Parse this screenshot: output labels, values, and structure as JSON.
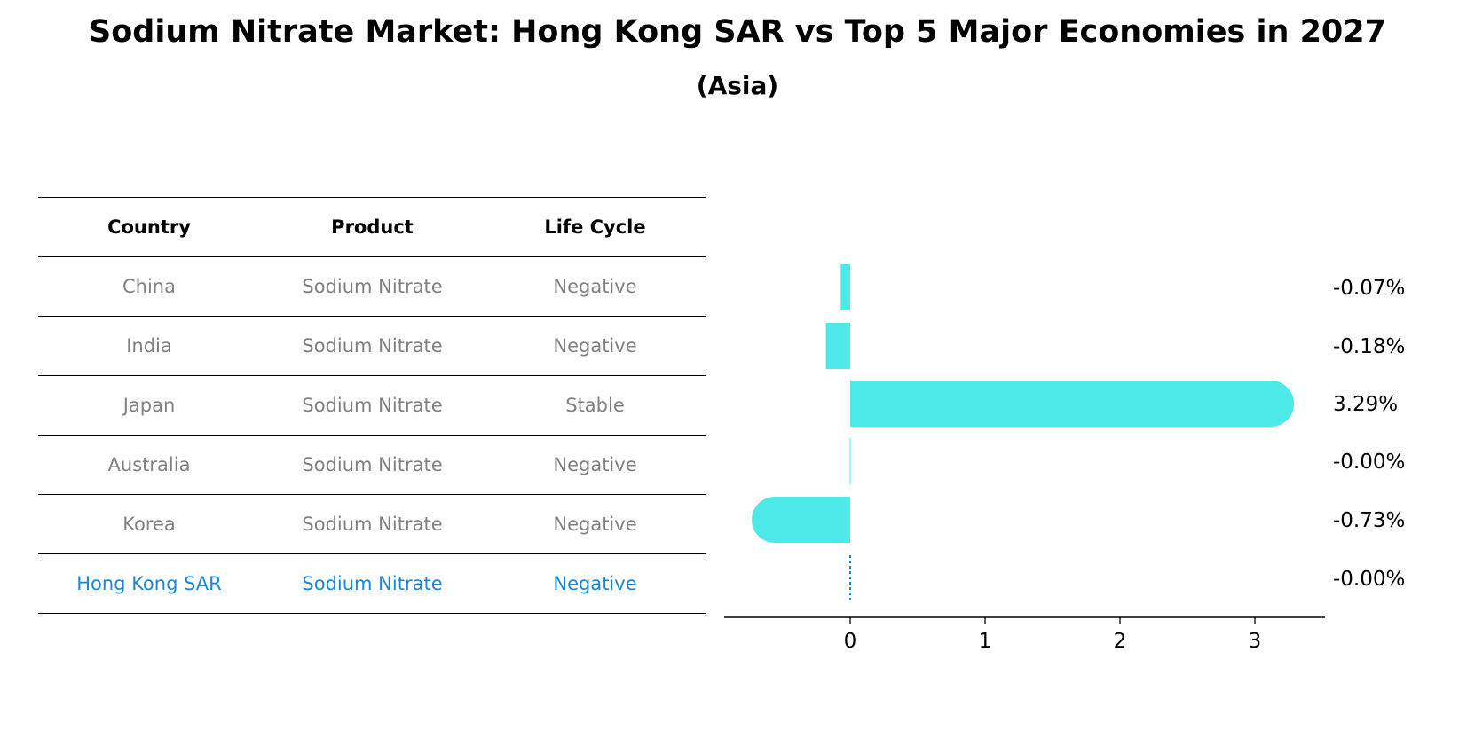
{
  "title": "Sodium Nitrate Market: Hong Kong SAR vs Top 5 Major Economies in 2027",
  "subtitle": "(Asia)",
  "table": {
    "headers": [
      "Country",
      "Product",
      "Life Cycle"
    ],
    "rows": [
      {
        "country": "China",
        "product": "Sodium Nitrate",
        "life_cycle": "Negative",
        "highlight": false
      },
      {
        "country": "India",
        "product": "Sodium Nitrate",
        "life_cycle": "Negative",
        "highlight": false
      },
      {
        "country": "Japan",
        "product": "Sodium Nitrate",
        "life_cycle": "Stable",
        "highlight": false
      },
      {
        "country": "Australia",
        "product": "Sodium Nitrate",
        "life_cycle": "Negative",
        "highlight": false
      },
      {
        "country": "Korea",
        "product": "Sodium Nitrate",
        "life_cycle": "Negative",
        "highlight": false
      },
      {
        "country": "Hong Kong SAR",
        "product": "Sodium Nitrate",
        "life_cycle": "Negative",
        "highlight": true
      }
    ]
  },
  "colors": {
    "bar": "#4de8e8",
    "highlight_text": "#1a86d6",
    "muted_text": "#808080",
    "zero_line": "#1a86d6"
  },
  "chart_data": {
    "type": "bar",
    "orientation": "horizontal",
    "categories": [
      "China",
      "India",
      "Japan",
      "Australia",
      "Korea",
      "Hong Kong SAR"
    ],
    "values": [
      -0.07,
      -0.18,
      3.29,
      -0.0,
      -0.73,
      -0.0
    ],
    "value_labels": [
      "-0.07%",
      "-0.18%",
      "3.29%",
      "-0.00%",
      "-0.73%",
      "-0.00%"
    ],
    "xticks": [
      0,
      1,
      2,
      3
    ],
    "xlim": [
      -0.95,
      3.55
    ],
    "grid": false
  }
}
